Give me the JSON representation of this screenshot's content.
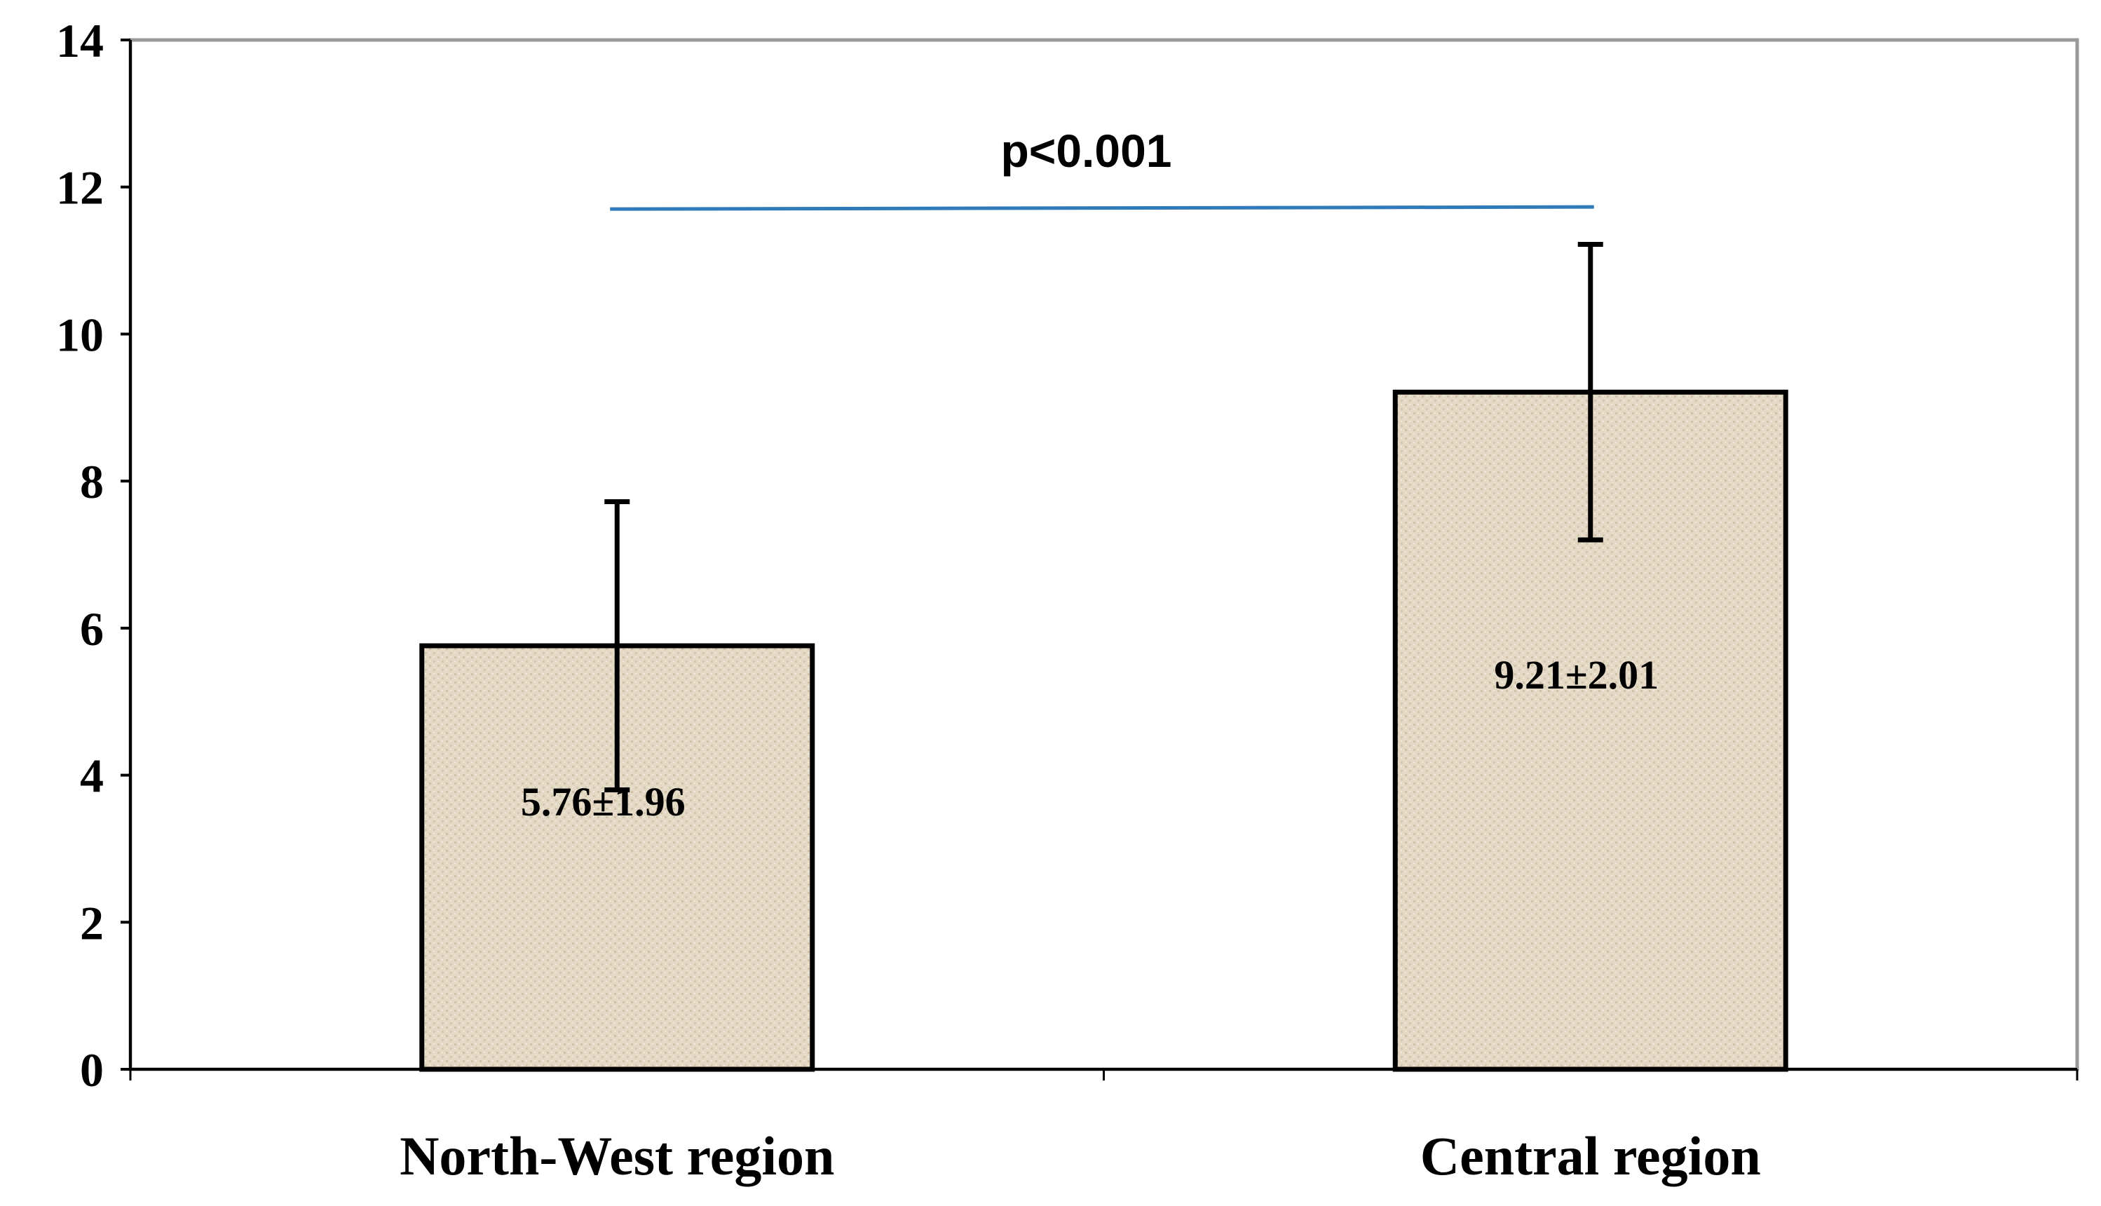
{
  "chart_data": {
    "type": "bar",
    "categories": [
      "North-West region",
      "Central region"
    ],
    "values": [
      5.76,
      9.21
    ],
    "errors": [
      1.96,
      2.01
    ],
    "data_labels": [
      "5.76±1.96",
      "9.21±2.01"
    ],
    "ylim": [
      0,
      14
    ],
    "yticks": [
      0,
      2,
      4,
      6,
      8,
      10,
      12,
      14
    ],
    "title": "",
    "xlabel": "",
    "ylabel": "",
    "grid": false,
    "significance": {
      "label": "p<0.001",
      "between": [
        0,
        1
      ]
    },
    "colors": {
      "bar_fill": "#e2d6c0",
      "bar_stroke": "#000000",
      "significance_line": "#2f7ab8",
      "plot_border": "#999999"
    }
  }
}
